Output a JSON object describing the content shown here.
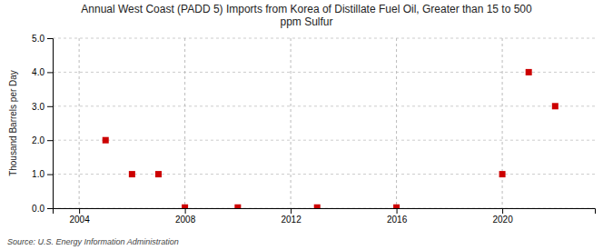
{
  "chart_data": {
    "type": "scatter",
    "title": "Annual West Coast (PADD 5) Imports from Korea of Distillate Fuel Oil, Greater than 15 to 500\nppm Sulfur",
    "y_label": "Thousand Barrels per Day",
    "annotations": [
      "Source: U.S. Energy Information Administration"
    ],
    "x": [
      2005,
      2006,
      2007,
      2008,
      2010,
      2013,
      2016,
      2020,
      2021,
      2022
    ],
    "values": [
      2.0,
      1.0,
      1.0,
      0.02,
      0.02,
      0.02,
      0.02,
      1.0,
      4.0,
      3.0
    ],
    "color": "#cc0000",
    "marker": "square",
    "xlim": [
      2003,
      2023.5
    ],
    "ylim": [
      0.0,
      5.0
    ],
    "xticks": [
      2004,
      2008,
      2012,
      2016,
      2020
    ],
    "yticks": [
      {
        "value": 0.0,
        "label": "0.0"
      },
      {
        "value": 1.0,
        "label": "1.0"
      },
      {
        "value": 2.0,
        "label": "2.0"
      },
      {
        "value": 3.0,
        "label": "3.0"
      },
      {
        "value": 4.0,
        "label": "4.0"
      },
      {
        "value": 5.0,
        "label": "5.0"
      }
    ],
    "grid": true
  }
}
